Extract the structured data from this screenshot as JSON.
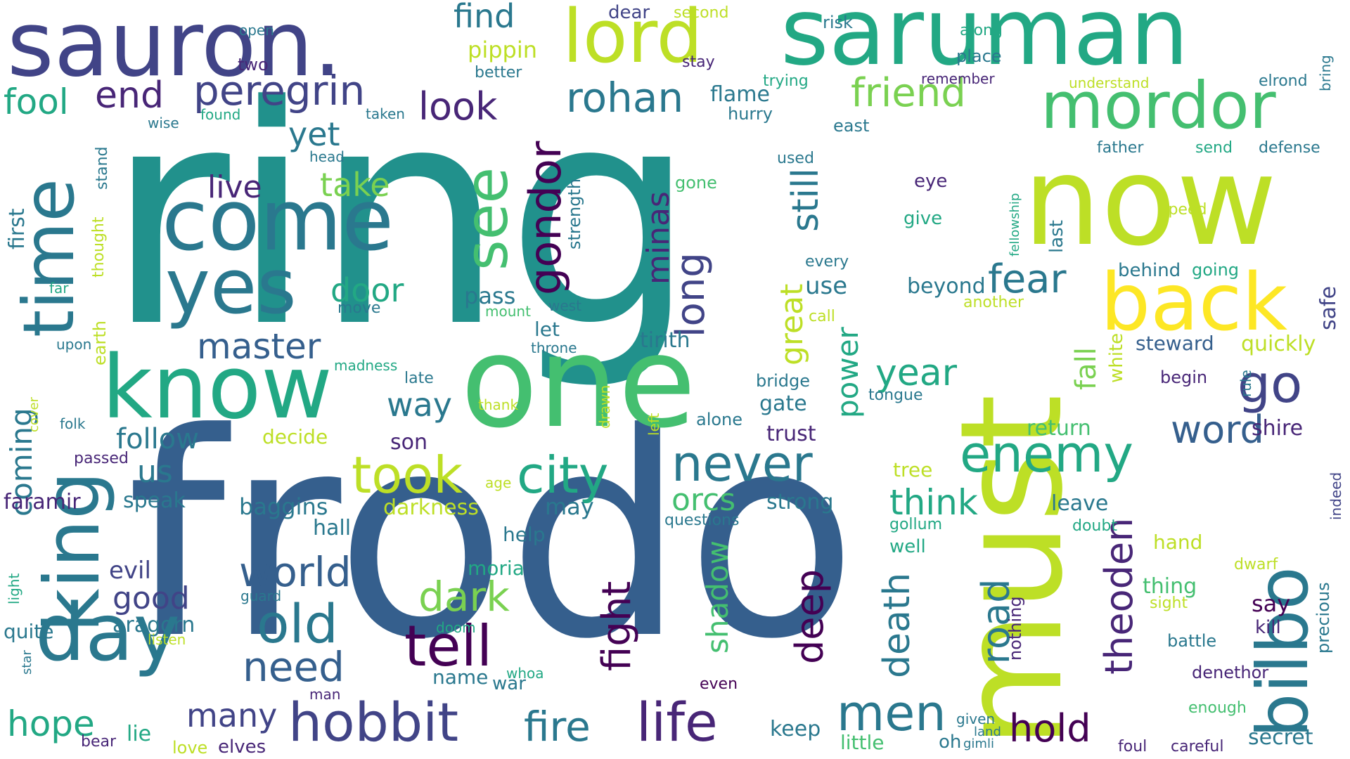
{
  "palette": {
    "dark_purple": "#440154",
    "purple": "#482677",
    "indigo": "#414487",
    "blue": "#355f8d",
    "slate": "#2a788e",
    "teal": "#21918c",
    "green_teal": "#22a884",
    "green": "#44bf70",
    "lime": "#7ad151",
    "yellow_green": "#bddf26",
    "yellow": "#fde725"
  },
  "words": [
    {
      "text": "ring",
      "color": "teal"
    },
    {
      "text": "frodo",
      "color": "blue"
    },
    {
      "text": "sauron.",
      "color": "indigo"
    },
    {
      "text": "saruman",
      "color": "green_teal"
    },
    {
      "text": "now",
      "color": "yellow_green"
    },
    {
      "text": "must",
      "color": "yellow_green"
    },
    {
      "text": "one",
      "color": "green"
    },
    {
      "text": "come",
      "color": "slate"
    },
    {
      "text": "king",
      "color": "slate"
    },
    {
      "text": "know",
      "color": "green_teal"
    },
    {
      "text": "yes",
      "color": "slate"
    },
    {
      "text": "time",
      "color": "slate"
    },
    {
      "text": "day",
      "color": "slate"
    },
    {
      "text": "lord",
      "color": "yellow_green"
    },
    {
      "text": "mordor",
      "color": "green"
    },
    {
      "text": "back",
      "color": "yellow"
    },
    {
      "text": "bilbo",
      "color": "slate"
    },
    {
      "text": "see",
      "color": "green"
    },
    {
      "text": "peregrin",
      "color": "indigo"
    },
    {
      "text": "rohan",
      "color": "slate"
    },
    {
      "text": "gondor",
      "color": "dark_purple"
    },
    {
      "text": "hobbit",
      "color": "indigo"
    },
    {
      "text": "life",
      "color": "purple"
    },
    {
      "text": "city",
      "color": "green_teal"
    },
    {
      "text": "enemy",
      "color": "green_teal"
    },
    {
      "text": "never",
      "color": "slate"
    },
    {
      "text": "took",
      "color": "yellow_green"
    },
    {
      "text": "tell",
      "color": "dark_purple"
    },
    {
      "text": "men",
      "color": "slate"
    },
    {
      "text": "old",
      "color": "slate"
    },
    {
      "text": "world",
      "color": "blue"
    },
    {
      "text": "need",
      "color": "blue"
    },
    {
      "text": "dark",
      "color": "lime"
    },
    {
      "text": "fight",
      "color": "dark_purple"
    },
    {
      "text": "deep",
      "color": "dark_purple"
    },
    {
      "text": "road",
      "color": "slate"
    },
    {
      "text": "death",
      "color": "slate"
    },
    {
      "text": "theoden",
      "color": "purple"
    },
    {
      "text": "fire",
      "color": "slate"
    },
    {
      "text": "hold",
      "color": "dark_purple"
    },
    {
      "text": "go",
      "color": "indigo"
    },
    {
      "text": "word",
      "color": "blue"
    },
    {
      "text": "fear",
      "color": "slate"
    },
    {
      "text": "friend",
      "color": "lime"
    },
    {
      "text": "still",
      "color": "slate"
    },
    {
      "text": "look",
      "color": "purple"
    },
    {
      "text": "end",
      "color": "purple"
    },
    {
      "text": "fool",
      "color": "green_teal"
    },
    {
      "text": "find",
      "color": "slate"
    },
    {
      "text": "master",
      "color": "blue"
    },
    {
      "text": "door",
      "color": "green_teal"
    },
    {
      "text": "take",
      "color": "lime"
    },
    {
      "text": "yet",
      "color": "slate"
    },
    {
      "text": "live",
      "color": "purple"
    },
    {
      "text": "way",
      "color": "slate"
    },
    {
      "text": "year",
      "color": "green_teal"
    },
    {
      "text": "think",
      "color": "green_teal"
    },
    {
      "text": "orcs",
      "color": "green"
    },
    {
      "text": "long",
      "color": "indigo"
    },
    {
      "text": "minas",
      "color": "purple"
    },
    {
      "text": "great",
      "color": "yellow_green"
    },
    {
      "text": "power",
      "color": "green_teal"
    },
    {
      "text": "shadow",
      "color": "green"
    },
    {
      "text": "hope",
      "color": "green_teal"
    },
    {
      "text": "many",
      "color": "indigo"
    },
    {
      "text": "good",
      "color": "indigo"
    },
    {
      "text": "coming",
      "color": "slate"
    },
    {
      "text": "follow",
      "color": "slate"
    },
    {
      "text": "us",
      "color": "slate"
    },
    {
      "text": "pippin",
      "color": "yellow_green"
    },
    {
      "text": "shire",
      "color": "purple"
    },
    {
      "text": "secret",
      "color": "slate"
    },
    {
      "text": "tirith",
      "color": "slate"
    },
    {
      "text": "baggins",
      "color": "slate"
    },
    {
      "text": "darkness",
      "color": "yellow_green"
    },
    {
      "text": "may",
      "color": "slate"
    },
    {
      "text": "evil",
      "color": "indigo"
    },
    {
      "text": "aragorn",
      "color": "slate"
    },
    {
      "text": "quite",
      "color": "slate"
    },
    {
      "text": "speak",
      "color": "slate"
    },
    {
      "text": "faramir",
      "color": "purple"
    },
    {
      "text": "pass",
      "color": "slate"
    },
    {
      "text": "let",
      "color": "slate"
    },
    {
      "text": "use",
      "color": "slate"
    },
    {
      "text": "beyond",
      "color": "slate"
    },
    {
      "text": "gate",
      "color": "slate"
    },
    {
      "text": "trust",
      "color": "purple"
    },
    {
      "text": "strong",
      "color": "slate"
    },
    {
      "text": "leave",
      "color": "slate"
    },
    {
      "text": "fall",
      "color": "lime"
    },
    {
      "text": "quickly",
      "color": "yellow_green"
    },
    {
      "text": "steward",
      "color": "blue"
    },
    {
      "text": "return",
      "color": "green"
    },
    {
      "text": "safe",
      "color": "indigo"
    },
    {
      "text": "behind",
      "color": "slate"
    },
    {
      "text": "going",
      "color": "green_teal"
    },
    {
      "text": "moria",
      "color": "green_teal"
    },
    {
      "text": "help",
      "color": "slate"
    },
    {
      "text": "hall",
      "color": "slate"
    },
    {
      "text": "name",
      "color": "slate"
    },
    {
      "text": "war",
      "color": "slate"
    },
    {
      "text": "lie",
      "color": "green_teal"
    },
    {
      "text": "elves",
      "color": "purple"
    },
    {
      "text": "love",
      "color": "yellow_green"
    },
    {
      "text": "bear",
      "color": "purple"
    },
    {
      "text": "keep",
      "color": "slate"
    },
    {
      "text": "little",
      "color": "green"
    },
    {
      "text": "oh",
      "color": "slate"
    },
    {
      "text": "gimli",
      "color": "slate"
    },
    {
      "text": "given",
      "color": "slate"
    },
    {
      "text": "land",
      "color": "slate"
    },
    {
      "text": "foul",
      "color": "purple"
    },
    {
      "text": "careful",
      "color": "purple"
    },
    {
      "text": "enough",
      "color": "green"
    },
    {
      "text": "battle",
      "color": "slate"
    },
    {
      "text": "denethor",
      "color": "purple"
    },
    {
      "text": "kill",
      "color": "purple"
    },
    {
      "text": "precious",
      "color": "slate"
    },
    {
      "text": "say",
      "color": "dark_purple"
    },
    {
      "text": "thing",
      "color": "green"
    },
    {
      "text": "sight",
      "color": "yellow_green"
    },
    {
      "text": "dwarf",
      "color": "yellow_green"
    },
    {
      "text": "hand",
      "color": "yellow_green"
    },
    {
      "text": "doubt",
      "color": "green_teal"
    },
    {
      "text": "indeed",
      "color": "indigo"
    },
    {
      "text": "well",
      "color": "green_teal"
    },
    {
      "text": "gollum",
      "color": "green_teal"
    },
    {
      "text": "tree",
      "color": "yellow_green"
    },
    {
      "text": "tongue",
      "color": "slate"
    },
    {
      "text": "eye",
      "color": "purple"
    },
    {
      "text": "give",
      "color": "green_teal"
    },
    {
      "text": "every",
      "color": "slate"
    },
    {
      "text": "another",
      "color": "yellow_green"
    },
    {
      "text": "call",
      "color": "yellow_green"
    },
    {
      "text": "bridge",
      "color": "slate"
    },
    {
      "text": "alone",
      "color": "slate"
    },
    {
      "text": "white",
      "color": "yellow_green"
    },
    {
      "text": "begin",
      "color": "purple"
    },
    {
      "text": "rule",
      "color": "slate"
    },
    {
      "text": "last",
      "color": "slate"
    },
    {
      "text": "fellowship",
      "color": "green_teal"
    },
    {
      "text": "speed",
      "color": "yellow_green"
    },
    {
      "text": "father",
      "color": "slate"
    },
    {
      "text": "send",
      "color": "green_teal"
    },
    {
      "text": "defense",
      "color": "slate"
    },
    {
      "text": "elrond",
      "color": "slate"
    },
    {
      "text": "bring",
      "color": "slate"
    },
    {
      "text": "understand",
      "color": "yellow_green"
    },
    {
      "text": "remember",
      "color": "purple"
    },
    {
      "text": "place",
      "color": "slate"
    },
    {
      "text": "along",
      "color": "green_teal"
    },
    {
      "text": "risk",
      "color": "slate"
    },
    {
      "text": "dear",
      "color": "indigo"
    },
    {
      "text": "second",
      "color": "yellow_green"
    },
    {
      "text": "stay",
      "color": "purple"
    },
    {
      "text": "trying",
      "color": "green_teal"
    },
    {
      "text": "flame",
      "color": "slate"
    },
    {
      "text": "hurry",
      "color": "slate"
    },
    {
      "text": "east",
      "color": "slate"
    },
    {
      "text": "used",
      "color": "slate"
    },
    {
      "text": "better",
      "color": "slate"
    },
    {
      "text": "taken",
      "color": "slate"
    },
    {
      "text": "two",
      "color": "purple"
    },
    {
      "text": "open",
      "color": "slate"
    },
    {
      "text": "found",
      "color": "green_teal"
    },
    {
      "text": "wise",
      "color": "slate"
    },
    {
      "text": "head",
      "color": "slate"
    },
    {
      "text": "stand",
      "color": "slate"
    },
    {
      "text": "first",
      "color": "slate"
    },
    {
      "text": "thought",
      "color": "yellow_green"
    },
    {
      "text": "earth",
      "color": "yellow_green"
    },
    {
      "text": "strength",
      "color": "slate"
    },
    {
      "text": "gone",
      "color": "green"
    },
    {
      "text": "far",
      "color": "green_teal"
    },
    {
      "text": "move",
      "color": "slate"
    },
    {
      "text": "mount",
      "color": "green"
    },
    {
      "text": "west",
      "color": "slate"
    },
    {
      "text": "throne",
      "color": "slate"
    },
    {
      "text": "upon",
      "color": "slate"
    },
    {
      "text": "madness",
      "color": "green_teal"
    },
    {
      "text": "late",
      "color": "slate"
    },
    {
      "text": "thank",
      "color": "yellow_green"
    },
    {
      "text": "drawn",
      "color": "yellow_green"
    },
    {
      "text": "left",
      "color": "yellow_green"
    },
    {
      "text": "son",
      "color": "purple"
    },
    {
      "text": "decide",
      "color": "yellow_green"
    },
    {
      "text": "cover",
      "color": "yellow_green"
    },
    {
      "text": "folk",
      "color": "slate"
    },
    {
      "text": "passed",
      "color": "purple"
    },
    {
      "text": "age",
      "color": "yellow_green"
    },
    {
      "text": "questions",
      "color": "slate"
    },
    {
      "text": "light",
      "color": "green_teal"
    },
    {
      "text": "guard",
      "color": "slate"
    },
    {
      "text": "listen",
      "color": "yellow_green"
    },
    {
      "text": "doom",
      "color": "green_teal"
    },
    {
      "text": "star",
      "color": "slate"
    },
    {
      "text": "man",
      "color": "purple"
    },
    {
      "text": "whoa",
      "color": "green_teal"
    },
    {
      "text": "even",
      "color": "dark_purple"
    },
    {
      "text": "nothing",
      "color": "purple"
    }
  ]
}
